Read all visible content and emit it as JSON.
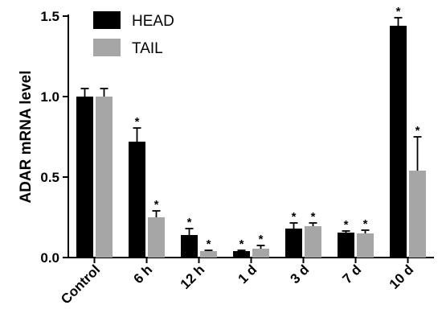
{
  "chart_data": {
    "type": "bar",
    "ylabel": "ADAR mRNA level",
    "xlabel": "",
    "ylim": [
      0,
      1.5
    ],
    "yticks": [
      0.0,
      0.5,
      1.0,
      1.5
    ],
    "ytick_labels": [
      "0.0",
      "0.5",
      "1.0",
      "1.5"
    ],
    "categories": [
      "Control",
      "6 h",
      "12 h",
      "1 d",
      "3 d",
      "7 d",
      "10 d"
    ],
    "legend_position": "top-left",
    "series": [
      {
        "name": "HEAD",
        "color": "#000000",
        "values": [
          1.0,
          0.72,
          0.14,
          0.04,
          0.18,
          0.155,
          1.44
        ],
        "errors": [
          0.05,
          0.085,
          0.04,
          0.005,
          0.035,
          0.01,
          0.05
        ],
        "significance": [
          "",
          "*",
          "*",
          "*",
          "*",
          "*",
          "*"
        ]
      },
      {
        "name": "TAIL",
        "color": "#a6a6a6",
        "values": [
          1.0,
          0.25,
          0.04,
          0.055,
          0.195,
          0.15,
          0.54
        ],
        "errors": [
          0.05,
          0.04,
          0.005,
          0.02,
          0.02,
          0.02,
          0.21
        ],
        "significance": [
          "",
          "*",
          "*",
          "*",
          "*",
          "*",
          "*"
        ]
      }
    ]
  }
}
